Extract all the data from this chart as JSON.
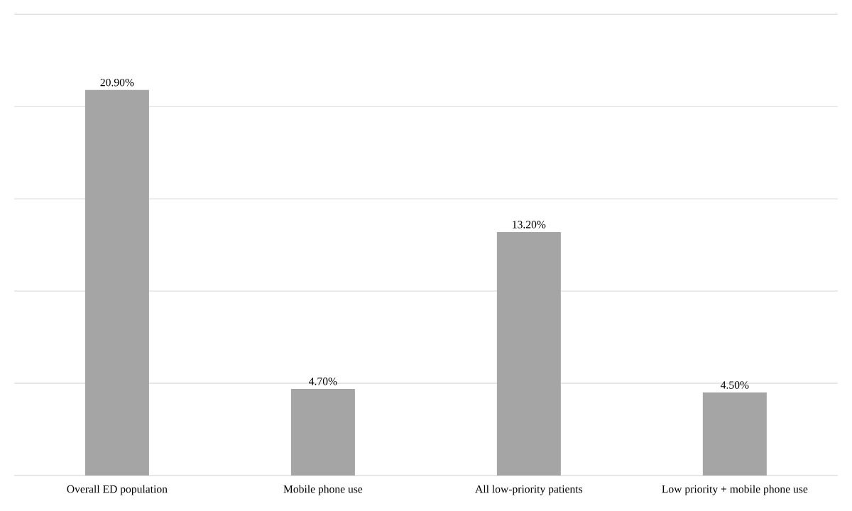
{
  "chart_data": {
    "type": "bar",
    "categories": [
      "Overall ED population",
      "Mobile phone use",
      "All low-priority patients",
      "Low priority + mobile phone use"
    ],
    "values": [
      20.9,
      4.7,
      13.2,
      4.5
    ],
    "value_labels": [
      "20.90%",
      "4.70%",
      "13.20%",
      "4.50%"
    ],
    "color": "#a5a5a5",
    "ylim": [
      0,
      25
    ],
    "yticks": [
      {
        "value": 0,
        "label": null
      },
      {
        "value": 5,
        "label": null
      },
      {
        "value": 10,
        "label": null
      },
      {
        "value": 15,
        "label": null
      },
      {
        "value": 20,
        "label": null
      },
      {
        "value": 25,
        "label": null
      }
    ],
    "grid": "y",
    "tick_labels": "x"
  }
}
